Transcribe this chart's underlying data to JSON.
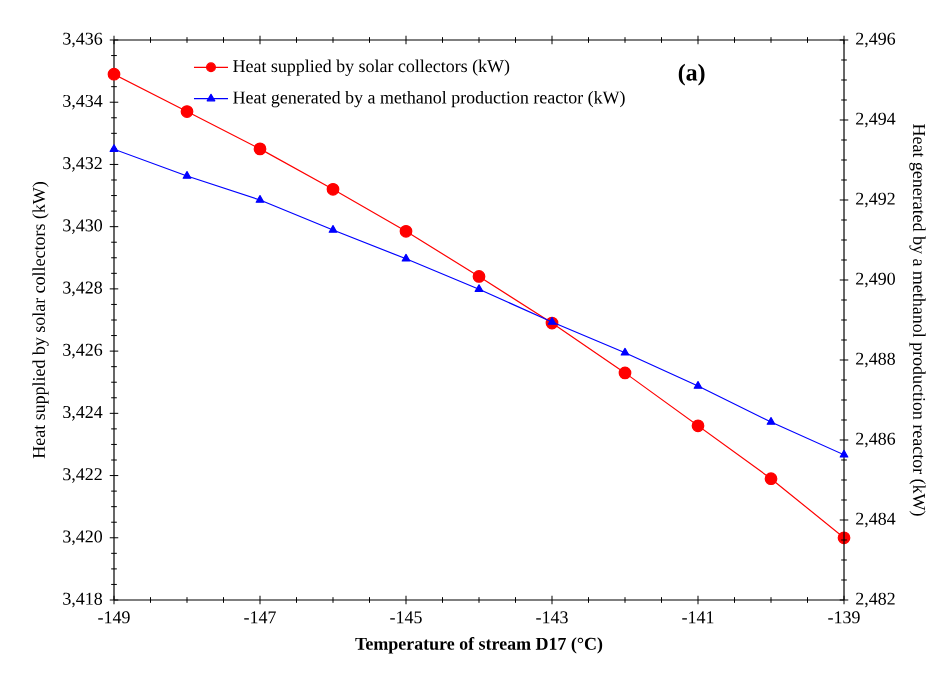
{
  "chart_data": {
    "type": "line",
    "x": [
      -149,
      -148,
      -147,
      -146,
      -145,
      -144,
      -143,
      -142,
      -141,
      -140,
      -139
    ],
    "series": [
      {
        "name": "Heat supplied by solar collectors (kW)",
        "color": "#ff0000",
        "marker": "circle",
        "values": [
          3434.9,
          3433.7,
          3432.5,
          3431.2,
          3429.85,
          3428.4,
          3426.9,
          3425.3,
          3423.6,
          3421.9,
          3420.0
        ]
      },
      {
        "name": "Heat generated by a methanol production reactor (kW)",
        "color": "#0000ff",
        "marker": "triangle",
        "axis": "y2",
        "values": [
          2493.27,
          2492.6,
          2492.0,
          2491.25,
          2490.53,
          2489.77,
          2488.95,
          2488.18,
          2487.35,
          2486.45,
          2485.63
        ]
      }
    ],
    "xlabel": "Temperature of stream D17 (°C)",
    "ylabel": "Heat supplied by solar collectors (kW)",
    "y2label": "Heat generated by a methanol production reactor (kW)",
    "annotations": [
      "(a)"
    ],
    "xlim": [
      -149,
      -139
    ],
    "xticks": [
      -149,
      -147,
      -145,
      -143,
      -141,
      -139
    ],
    "ylim": [
      3418,
      3436
    ],
    "yticks": [
      {
        "value": 3418,
        "label": "3,418"
      },
      {
        "value": 3420,
        "label": "3,420"
      },
      {
        "value": 3422,
        "label": "3,422"
      },
      {
        "value": 3424,
        "label": "3,424"
      },
      {
        "value": 3426,
        "label": "3,426"
      },
      {
        "value": 3428,
        "label": "3,428"
      },
      {
        "value": 3430,
        "label": "3,430"
      },
      {
        "value": 3432,
        "label": "3,432"
      },
      {
        "value": 3434,
        "label": "3,434"
      },
      {
        "value": 3436,
        "label": "3,436"
      }
    ],
    "y2lim": [
      2482,
      2496
    ],
    "y2ticks": [
      {
        "value": 2482,
        "label": "2,482"
      },
      {
        "value": 2484,
        "label": "2,484"
      },
      {
        "value": 2486,
        "label": "2,486"
      },
      {
        "value": 2488,
        "label": "2,488"
      },
      {
        "value": 2490,
        "label": "2,490"
      },
      {
        "value": 2492,
        "label": "2,492"
      },
      {
        "value": 2494,
        "label": "2,494"
      },
      {
        "value": 2496,
        "label": "2,496"
      }
    ],
    "legend": "top left",
    "line_style": "solid"
  }
}
